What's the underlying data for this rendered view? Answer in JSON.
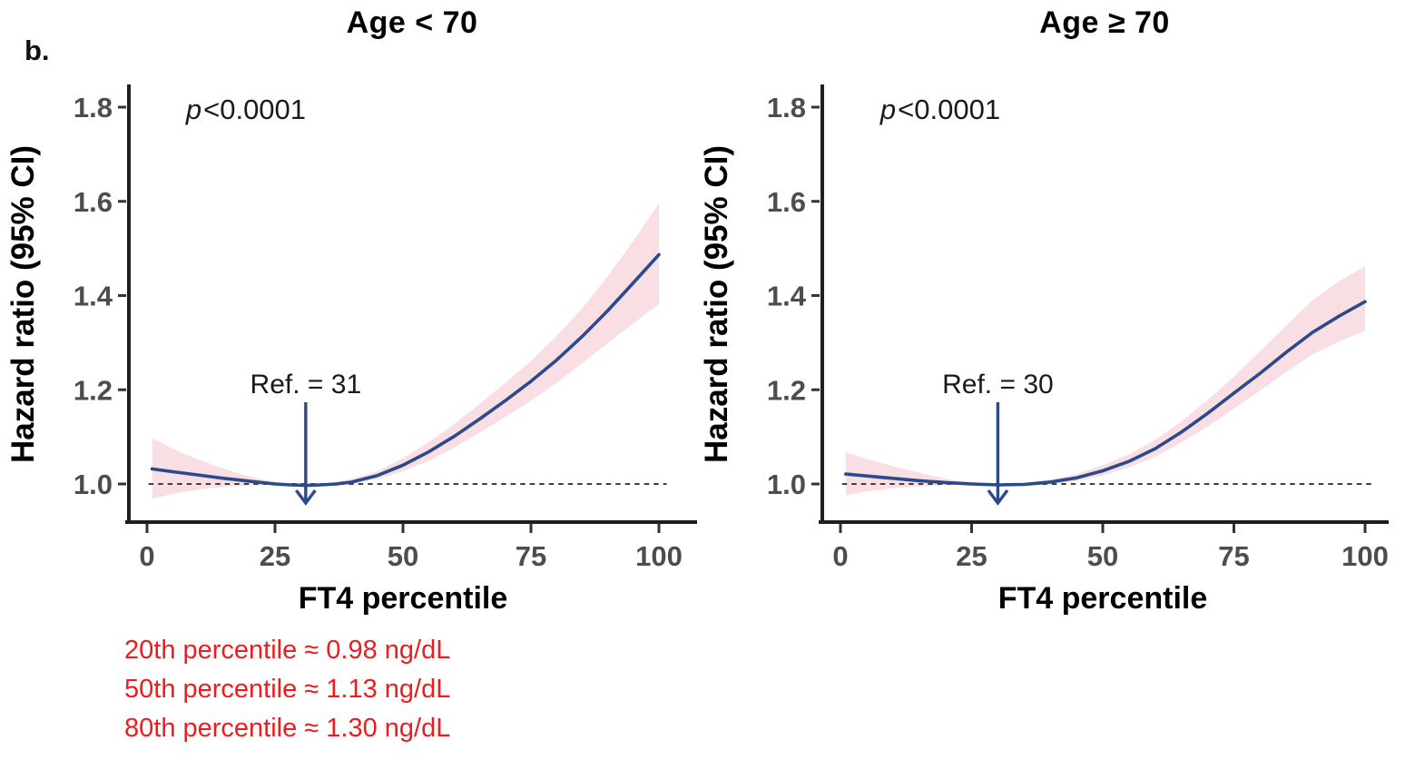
{
  "figure": {
    "panel_label": "b.",
    "footnote_lines": [
      "20th percentile ≈ 0.98 ng/dL",
      "50th percentile ≈ 1.13 ng/dL",
      "80th percentile ≈ 1.30 ng/dL"
    ],
    "colors": {
      "curve_navy": "#2b4a8b",
      "ci_band_pink": "#f9dfe3",
      "footnote_red": "#ee1c1c",
      "tick_label_gray": "#4d4d4d",
      "axis_black": "#1f1f1f",
      "dashed_gray": "#404040",
      "background": "#ffffff"
    }
  },
  "chart_data": [
    {
      "type": "line",
      "title": "Age < 70",
      "xlabel": "FT4 percentile",
      "ylabel": "Hazard ratio (95% CI)",
      "p_value": "p<0.0001",
      "reference": {
        "label": "Ref. = 31",
        "x": 31
      },
      "baseline_y": 1.0,
      "xlim": [
        0,
        100
      ],
      "ylim": [
        0.92,
        1.84
      ],
      "x_ticks": [
        0,
        25,
        50,
        75,
        100
      ],
      "y_ticks": [
        1.0,
        1.2,
        1.4,
        1.6,
        1.8
      ],
      "grid": false,
      "legend": "none",
      "x": [
        1,
        5,
        10,
        15,
        20,
        25,
        28,
        31,
        34,
        37,
        40,
        45,
        50,
        55,
        60,
        65,
        70,
        75,
        80,
        85,
        90,
        95,
        100
      ],
      "series": [
        {
          "name": "Hazard ratio",
          "values": [
            1.032,
            1.026,
            1.019,
            1.012,
            1.006,
            1.0,
            0.998,
            0.997,
            0.998,
            1.0,
            1.004,
            1.018,
            1.04,
            1.068,
            1.101,
            1.138,
            1.177,
            1.218,
            1.263,
            1.313,
            1.368,
            1.427,
            1.487
          ]
        },
        {
          "name": "95% CI lower",
          "values": [
            0.968,
            0.979,
            0.988,
            0.994,
            0.997,
            0.998,
            0.997,
            0.995,
            0.995,
            0.997,
            1.0,
            1.01,
            1.027,
            1.049,
            1.077,
            1.109,
            1.142,
            1.177,
            1.215,
            1.256,
            1.299,
            1.341,
            1.382
          ]
        },
        {
          "name": "95% CI upper",
          "values": [
            1.098,
            1.075,
            1.052,
            1.032,
            1.016,
            1.004,
            1.001,
            0.999,
            1.001,
            1.005,
            1.011,
            1.027,
            1.055,
            1.088,
            1.127,
            1.17,
            1.215,
            1.261,
            1.314,
            1.373,
            1.441,
            1.516,
            1.596
          ]
        }
      ]
    },
    {
      "type": "line",
      "title": "Age ≥ 70",
      "xlabel": "FT4 percentile",
      "ylabel": "Hazard ratio (95% CI)",
      "p_value": "p<0.0001",
      "reference": {
        "label": "Ref. = 30",
        "x": 30
      },
      "baseline_y": 1.0,
      "xlim": [
        0,
        100
      ],
      "ylim": [
        0.92,
        1.84
      ],
      "x_ticks": [
        0,
        25,
        50,
        75,
        100
      ],
      "y_ticks": [
        1.0,
        1.2,
        1.4,
        1.6,
        1.8
      ],
      "grid": false,
      "legend": "none",
      "x": [
        1,
        5,
        10,
        15,
        20,
        25,
        30,
        35,
        40,
        45,
        50,
        55,
        60,
        65,
        70,
        75,
        80,
        85,
        90,
        95,
        100
      ],
      "series": [
        {
          "name": "Hazard ratio",
          "values": [
            1.021,
            1.017,
            1.012,
            1.007,
            1.003,
            1.0,
            0.998,
            0.999,
            1.004,
            1.013,
            1.028,
            1.048,
            1.075,
            1.11,
            1.15,
            1.193,
            1.235,
            1.28,
            1.322,
            1.356,
            1.387
          ]
        },
        {
          "name": "95% CI lower",
          "values": [
            0.976,
            0.984,
            0.991,
            0.995,
            0.998,
            0.999,
            0.996,
            0.996,
            0.999,
            1.006,
            1.018,
            1.035,
            1.058,
            1.088,
            1.122,
            1.16,
            1.198,
            1.238,
            1.275,
            1.302,
            1.325
          ]
        },
        {
          "name": "95% CI upper",
          "values": [
            1.068,
            1.053,
            1.038,
            1.024,
            1.011,
            1.003,
            1.0,
            1.002,
            1.009,
            1.021,
            1.04,
            1.063,
            1.094,
            1.133,
            1.178,
            1.228,
            1.282,
            1.337,
            1.39,
            1.43,
            1.462
          ]
        }
      ]
    }
  ]
}
